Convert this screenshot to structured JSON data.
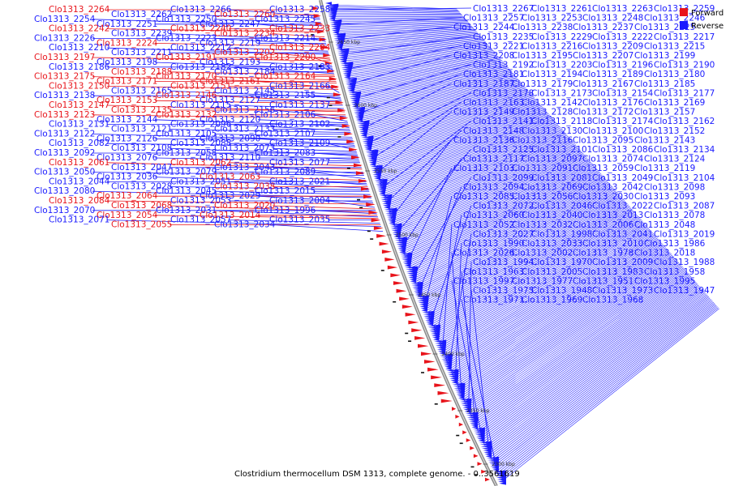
{
  "title": "Clostridium thermocellum DSM 1313, complete genome. - 0..3561619",
  "legend": [
    {
      "label": "Forward",
      "color": "#e8141b"
    },
    {
      "label": "Reverse",
      "color": "#1a1aff"
    }
  ],
  "colors": {
    "forward": "#e8141b",
    "reverse": "#1a1aff",
    "backbone": "#8a8a8a"
  },
  "tick_labels": [
    "2650 kbp",
    "2600 kbp",
    "2550 kbp",
    "2500 kbp",
    "2450 kbp",
    "2400 kbp",
    "2350 kbp",
    "2300 kbp"
  ],
  "left_labels": [
    [
      "Clo1313_2264",
      "f"
    ],
    [
      "Clo1313_2262",
      "r"
    ],
    [
      "Clo1313_2266",
      "r"
    ],
    [
      "Clo1313_2260",
      "f"
    ],
    [
      "Clo1313_2258",
      "r"
    ],
    [
      "Clo1313_2254",
      "r"
    ],
    [
      "Clo1313_2251",
      "r"
    ],
    [
      "Clo1313_2250",
      "r"
    ],
    [
      "Clo1313_2247",
      "r"
    ],
    [
      "Clo1313_2245",
      "r"
    ],
    [
      "Clo1313_2242",
      "f"
    ],
    [
      "Clo1313_2239",
      "r"
    ],
    [
      "Clo1313_2240",
      "f"
    ],
    [
      "Clo1313_2234",
      "f"
    ],
    [
      "Clo1313_2233",
      "f"
    ],
    [
      "Clo1313_2226",
      "r"
    ],
    [
      "Clo1313_2224",
      "f"
    ],
    [
      "Clo1313_2223",
      "r"
    ],
    [
      "Clo1313_2219",
      "r"
    ],
    [
      "Clo1313_2214",
      "r"
    ],
    [
      "Clo1313_2210",
      "r"
    ],
    [
      "Clo1313_2211",
      "r"
    ],
    [
      "Clo1313_2212",
      "r"
    ],
    [
      "Clo1313_2202",
      "f"
    ],
    [
      "Clo1313_2204",
      "f"
    ],
    [
      "Clo1313_2197",
      "f"
    ],
    [
      "Clo1313_2198",
      "r"
    ],
    [
      "Clo1313_2191",
      "f"
    ],
    [
      "Clo1313_2193",
      "r"
    ],
    [
      "Clo1313_2200",
      "f"
    ],
    [
      "Clo1313_2186",
      "r"
    ],
    [
      "Clo1313_2188",
      "f"
    ],
    [
      "Clo1313_2182",
      "r"
    ],
    [
      "Clo1313_2184",
      "r"
    ],
    [
      "Clo1313_2183",
      "r"
    ],
    [
      "Clo1313_2175",
      "f"
    ],
    [
      "Clo1313_2171",
      "f"
    ],
    [
      "Clo1313_2170",
      "f"
    ],
    [
      "Clo1313_2161",
      "f"
    ],
    [
      "Clo1313_2164",
      "f"
    ],
    [
      "Clo1313_2150",
      "f"
    ],
    [
      "Clo1313_2165",
      "r"
    ],
    [
      "Clo1313_2151",
      "f"
    ],
    [
      "Clo1313_2145",
      "r"
    ],
    [
      "Clo1313_2166",
      "r"
    ],
    [
      "Clo1313_2138",
      "r"
    ],
    [
      "Clo1313_2153",
      "f"
    ],
    [
      "Clo1313_2146",
      "f"
    ],
    [
      "Clo1313_2127",
      "r"
    ],
    [
      "Clo1313_2155",
      "r"
    ],
    [
      "Clo1313_2147",
      "f"
    ],
    [
      "Clo1313_2135",
      "f"
    ],
    [
      "Clo1313_2115",
      "r"
    ],
    [
      "Clo1313_2156",
      "r"
    ],
    [
      "Clo1313_2137",
      "r"
    ],
    [
      "Clo1313_2123",
      "f"
    ],
    [
      "Clo1313_2144",
      "r"
    ],
    [
      "Clo1313_2132",
      "f"
    ],
    [
      "Clo1313_2120",
      "r"
    ],
    [
      "Clo1313_2106",
      "r"
    ],
    [
      "Clo1313_2131",
      "r"
    ],
    [
      "Clo1313_2121",
      "r"
    ],
    [
      "Clo1313_2096",
      "r"
    ],
    [
      "Clo1313_2133",
      "r"
    ],
    [
      "Clo1313_2102",
      "r"
    ],
    [
      "Clo1313_2122",
      "r"
    ],
    [
      "Clo1313_2126",
      "r"
    ],
    [
      "Clo1313_2105",
      "r"
    ],
    [
      "Clo1313_2090",
      "r"
    ],
    [
      "Clo1313_2107",
      "r"
    ],
    [
      "Clo1313_2082",
      "r"
    ],
    [
      "Clo1313_2108",
      "r"
    ],
    [
      "Clo1313_2088",
      "r"
    ],
    [
      "Clo1313_2073",
      "r"
    ],
    [
      "Clo1313_2109",
      "r"
    ],
    [
      "Clo1313_2092",
      "r"
    ],
    [
      "Clo1313_2076",
      "r"
    ],
    [
      "Clo1313_2058",
      "r"
    ],
    [
      "Clo1313_2110",
      "r"
    ],
    [
      "Clo1313_2083",
      "r"
    ],
    [
      "Clo1313_2061",
      "f"
    ],
    [
      "Clo1313_2047",
      "r"
    ],
    [
      "Clo1313_2062",
      "f"
    ],
    [
      "Clo1313_2043",
      "r"
    ],
    [
      "Clo1313_2077",
      "r"
    ],
    [
      "Clo1313_2050",
      "r"
    ],
    [
      "Clo1313_2036",
      "r"
    ],
    [
      "Clo1313_2079",
      "r"
    ],
    [
      "Clo1313_2063",
      "f"
    ],
    [
      "Clo1313_2089",
      "r"
    ],
    [
      "Clo1313_2044",
      "r"
    ],
    [
      "Clo1313_2028",
      "r"
    ],
    [
      "Clo1313_2051",
      "r"
    ],
    [
      "Clo1313_2038",
      "f"
    ],
    [
      "Clo1313_2021",
      "r"
    ],
    [
      "Clo1313_2080",
      "r"
    ],
    [
      "Clo1313_2064",
      "f"
    ],
    [
      "Clo1313_2045",
      "r"
    ],
    [
      "Clo1313_2029",
      "r"
    ],
    [
      "Clo1313_2015",
      "r"
    ],
    [
      "Clo1313_2084",
      "f"
    ],
    [
      "Clo1313_2068",
      "f"
    ],
    [
      "Clo1313_2053",
      "r"
    ],
    [
      "Clo1313_2020",
      "f"
    ],
    [
      "Clo1313_2004",
      "r"
    ],
    [
      "Clo1313_2070",
      "r"
    ],
    [
      "Clo1313_2054",
      "f"
    ],
    [
      "Clo1313_2031",
      "r"
    ],
    [
      "Clo1313_2014",
      "f"
    ],
    [
      "Clo1313_1996",
      "r"
    ],
    [
      "Clo1313_2071",
      "r"
    ],
    [
      "Clo1313_2055",
      "f"
    ],
    [
      "Clo1313_2057",
      "r"
    ],
    [
      "Clo1313_2034",
      "r"
    ],
    [
      "Clo1313_2035",
      "r"
    ]
  ],
  "right_labels": [
    "Clo1313_2267",
    "Clo1313_2261",
    "Clo1313_2263",
    "Clo1313_2259",
    "Clo1313_2257",
    "Clo1313_2253",
    "Clo1313_2248",
    "Clo1313_2246",
    "Clo1313_2244",
    "Clo1313_2238",
    "Clo1313_2237",
    "Clo1313_2225",
    "Clo1313_2235",
    "Clo1313_2229",
    "Clo1313_2222",
    "Clo1313_2217",
    "Clo1313_2221",
    "Clo1313_2216",
    "Clo1313_2209",
    "Clo1313_2215",
    "Clo1313_2208",
    "Clo1313_2195",
    "Clo1313_2207",
    "Clo1313_2199",
    "Clo1313_2192",
    "Clo1313_2203",
    "Clo1313_2196",
    "Clo1313_2190",
    "Clo1313_2181",
    "Clo1313_2194",
    "Clo1313_2189",
    "Clo1313_2180",
    "Clo1313_2187",
    "Clo1313_2179",
    "Clo1313_2167",
    "Clo1313_2185",
    "Clo1313_2178",
    "Clo1313_2173",
    "Clo1313_2154",
    "Clo1313_2177",
    "Clo1313_2163",
    "Clo1313_2142",
    "Clo1313_2176",
    "Clo1313_2169",
    "Clo1313_2149",
    "Clo1313_2128",
    "Clo1313_2172",
    "Clo1313_2157",
    "Clo1313_2141",
    "Clo1313_2118",
    "Clo1313_2174",
    "Clo1313_2162",
    "Clo1313_2148",
    "Clo1313_2130",
    "Clo1313_2100",
    "Clo1313_2152",
    "Clo1313_2136",
    "Clo1313_2116",
    "Clo1313_2095",
    "Clo1313_2143",
    "Clo1313_2125",
    "Clo1313_2101",
    "Clo1313_2086",
    "Clo1313_2134",
    "Clo1313_2117",
    "Clo1313_2097",
    "Clo1313_2074",
    "Clo1313_2124",
    "Clo1313_2103",
    "Clo1313_2091",
    "Clo1313_2059",
    "Clo1313_2119",
    "Clo1313_2099",
    "Clo1313_2081",
    "Clo1313_2049",
    "Clo1313_2104",
    "Clo1313_2094",
    "Clo1313_2069",
    "Clo1313_2042",
    "Clo1313_2098",
    "Clo1313_2085",
    "Clo1313_2056",
    "Clo1313_2030",
    "Clo1313_2093",
    "Clo1313_2072",
    "Clo1313_2046",
    "Clo1313_2022",
    "Clo1313_2087",
    "Clo1313_2060",
    "Clo1313_2040",
    "Clo1313_2013",
    "Clo1313_2078",
    "Clo1313_2052",
    "Clo1313_2032",
    "Clo1313_2006",
    "Clo1313_2048",
    "Clo1313_2027",
    "Clo1313_1998",
    "Clo1313_2041",
    "Clo1313_2019",
    "Clo1313_1990",
    "Clo1313_2033",
    "Clo1313_2010",
    "Clo1313_1986",
    "Clo1313_2026",
    "Clo1313_2002",
    "Clo1313_1978",
    "Clo1313_2018",
    "Clo1313_1994",
    "Clo1313_1970",
    "Clo1313_2009",
    "Clo1313_1988",
    "Clo1313_1963",
    "Clo1313_2005",
    "Clo1313_1983",
    "Clo1313_1958",
    "Clo1313_1997",
    "Clo1313_1977",
    "Clo1313_1951",
    "Clo1313_1995",
    "Clo1313_1975",
    "Clo1313_1948",
    "Clo1313_1973",
    "Clo1313_1947",
    "Clo1313_1971",
    "Clo1313_1969",
    "Clo1313_1968"
  ]
}
